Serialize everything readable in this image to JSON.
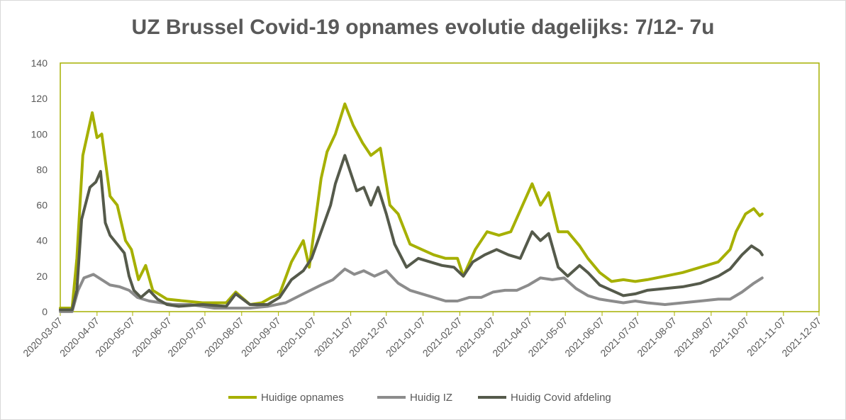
{
  "chart_data": {
    "type": "line",
    "title": "UZ Brussel Covid-19 opnames evolutie dagelijks: 7/12- 7u",
    "xlabel": "",
    "ylabel": "",
    "ylim": [
      0,
      140
    ],
    "yticks": [
      "0",
      "20",
      "40",
      "60",
      "80",
      "100",
      "120",
      "140"
    ],
    "grid": false,
    "legend_position": "bottom",
    "x": [
      "2020-03-07",
      "2020-04-07",
      "2020-05-07",
      "2020-06-07",
      "2020-07-07",
      "2020-08-07",
      "2020-09-07",
      "2020-10-07",
      "2020-11-07",
      "2020-12-07",
      "2021-01-07",
      "2021-02-07",
      "2021-03-07",
      "2021-04-07",
      "2021-05-07",
      "2021-06-07",
      "2021-07-07",
      "2021-08-07",
      "2021-09-07",
      "2021-10-07",
      "2021-11-07",
      "2021-12-07"
    ],
    "series": [
      {
        "name": "Huidige opnames",
        "color": "#a6b000",
        "values": [
          [
            0,
            2
          ],
          [
            10,
            2
          ],
          [
            14,
            30
          ],
          [
            19,
            88
          ],
          [
            27,
            112
          ],
          [
            31,
            98
          ],
          [
            35,
            100
          ],
          [
            42,
            65
          ],
          [
            48,
            60
          ],
          [
            55,
            40
          ],
          [
            60,
            35
          ],
          [
            66,
            18
          ],
          [
            72,
            26
          ],
          [
            78,
            12
          ],
          [
            90,
            7
          ],
          [
            105,
            6
          ],
          [
            120,
            5
          ],
          [
            140,
            5
          ],
          [
            148,
            11
          ],
          [
            160,
            4
          ],
          [
            170,
            5
          ],
          [
            178,
            8
          ],
          [
            185,
            10
          ],
          [
            195,
            28
          ],
          [
            205,
            40
          ],
          [
            210,
            25
          ],
          [
            220,
            75
          ],
          [
            225,
            90
          ],
          [
            232,
            100
          ],
          [
            240,
            117
          ],
          [
            247,
            105
          ],
          [
            255,
            95
          ],
          [
            262,
            88
          ],
          [
            270,
            92
          ],
          [
            278,
            60
          ],
          [
            285,
            55
          ],
          [
            295,
            38
          ],
          [
            305,
            35
          ],
          [
            315,
            32
          ],
          [
            325,
            30
          ],
          [
            335,
            30
          ],
          [
            340,
            20
          ],
          [
            350,
            35
          ],
          [
            360,
            45
          ],
          [
            370,
            43
          ],
          [
            380,
            45
          ],
          [
            390,
            60
          ],
          [
            398,
            72
          ],
          [
            405,
            60
          ],
          [
            412,
            67
          ],
          [
            420,
            45
          ],
          [
            428,
            45
          ],
          [
            438,
            37
          ],
          [
            445,
            30
          ],
          [
            455,
            22
          ],
          [
            465,
            17
          ],
          [
            475,
            18
          ],
          [
            485,
            17
          ],
          [
            495,
            18
          ],
          [
            510,
            20
          ],
          [
            525,
            22
          ],
          [
            540,
            25
          ],
          [
            555,
            28
          ],
          [
            565,
            35
          ],
          [
            570,
            45
          ],
          [
            578,
            55
          ],
          [
            585,
            58
          ],
          [
            590,
            54
          ],
          [
            592,
            55
          ]
        ]
      },
      {
        "name": "Huidig IZ",
        "color": "#8c8c8c",
        "values": [
          [
            0,
            0
          ],
          [
            10,
            0
          ],
          [
            15,
            12
          ],
          [
            20,
            19
          ],
          [
            28,
            21
          ],
          [
            35,
            18
          ],
          [
            42,
            15
          ],
          [
            50,
            14
          ],
          [
            58,
            12
          ],
          [
            65,
            8
          ],
          [
            75,
            6
          ],
          [
            85,
            5
          ],
          [
            95,
            4
          ],
          [
            110,
            4
          ],
          [
            130,
            2
          ],
          [
            145,
            2
          ],
          [
            160,
            2
          ],
          [
            175,
            3
          ],
          [
            190,
            5
          ],
          [
            205,
            10
          ],
          [
            220,
            15
          ],
          [
            230,
            18
          ],
          [
            240,
            24
          ],
          [
            248,
            21
          ],
          [
            256,
            23
          ],
          [
            265,
            20
          ],
          [
            275,
            23
          ],
          [
            285,
            16
          ],
          [
            295,
            12
          ],
          [
            305,
            10
          ],
          [
            315,
            8
          ],
          [
            325,
            6
          ],
          [
            335,
            6
          ],
          [
            345,
            8
          ],
          [
            355,
            8
          ],
          [
            365,
            11
          ],
          [
            375,
            12
          ],
          [
            385,
            12
          ],
          [
            395,
            15
          ],
          [
            405,
            19
          ],
          [
            415,
            18
          ],
          [
            425,
            19
          ],
          [
            435,
            13
          ],
          [
            445,
            9
          ],
          [
            455,
            7
          ],
          [
            465,
            6
          ],
          [
            475,
            5
          ],
          [
            485,
            6
          ],
          [
            495,
            5
          ],
          [
            510,
            4
          ],
          [
            525,
            5
          ],
          [
            540,
            6
          ],
          [
            555,
            7
          ],
          [
            565,
            7
          ],
          [
            575,
            11
          ],
          [
            585,
            16
          ],
          [
            592,
            19
          ]
        ]
      },
      {
        "name": "Huidig Covid afdeling",
        "color": "#555a4b",
        "values": [
          [
            0,
            1
          ],
          [
            10,
            1
          ],
          [
            14,
            12
          ],
          [
            18,
            52
          ],
          [
            25,
            70
          ],
          [
            30,
            73
          ],
          [
            34,
            79
          ],
          [
            38,
            50
          ],
          [
            42,
            43
          ],
          [
            48,
            38
          ],
          [
            54,
            33
          ],
          [
            58,
            20
          ],
          [
            62,
            12
          ],
          [
            68,
            8
          ],
          [
            75,
            12
          ],
          [
            82,
            7
          ],
          [
            90,
            4
          ],
          [
            100,
            3
          ],
          [
            120,
            4
          ],
          [
            140,
            3
          ],
          [
            148,
            10
          ],
          [
            160,
            4
          ],
          [
            175,
            4
          ],
          [
            185,
            8
          ],
          [
            195,
            18
          ],
          [
            205,
            23
          ],
          [
            212,
            30
          ],
          [
            220,
            45
          ],
          [
            228,
            60
          ],
          [
            232,
            72
          ],
          [
            240,
            88
          ],
          [
            245,
            78
          ],
          [
            250,
            68
          ],
          [
            256,
            70
          ],
          [
            262,
            60
          ],
          [
            268,
            70
          ],
          [
            275,
            55
          ],
          [
            282,
            38
          ],
          [
            292,
            25
          ],
          [
            302,
            30
          ],
          [
            312,
            28
          ],
          [
            322,
            26
          ],
          [
            332,
            25
          ],
          [
            340,
            20
          ],
          [
            348,
            28
          ],
          [
            358,
            32
          ],
          [
            368,
            35
          ],
          [
            378,
            32
          ],
          [
            388,
            30
          ],
          [
            398,
            45
          ],
          [
            405,
            40
          ],
          [
            412,
            44
          ],
          [
            420,
            25
          ],
          [
            428,
            20
          ],
          [
            438,
            26
          ],
          [
            445,
            22
          ],
          [
            455,
            15
          ],
          [
            465,
            12
          ],
          [
            475,
            9
          ],
          [
            485,
            10
          ],
          [
            495,
            12
          ],
          [
            510,
            13
          ],
          [
            525,
            14
          ],
          [
            540,
            16
          ],
          [
            555,
            20
          ],
          [
            565,
            24
          ],
          [
            575,
            32
          ],
          [
            583,
            37
          ],
          [
            590,
            34
          ],
          [
            592,
            32
          ]
        ]
      }
    ]
  }
}
